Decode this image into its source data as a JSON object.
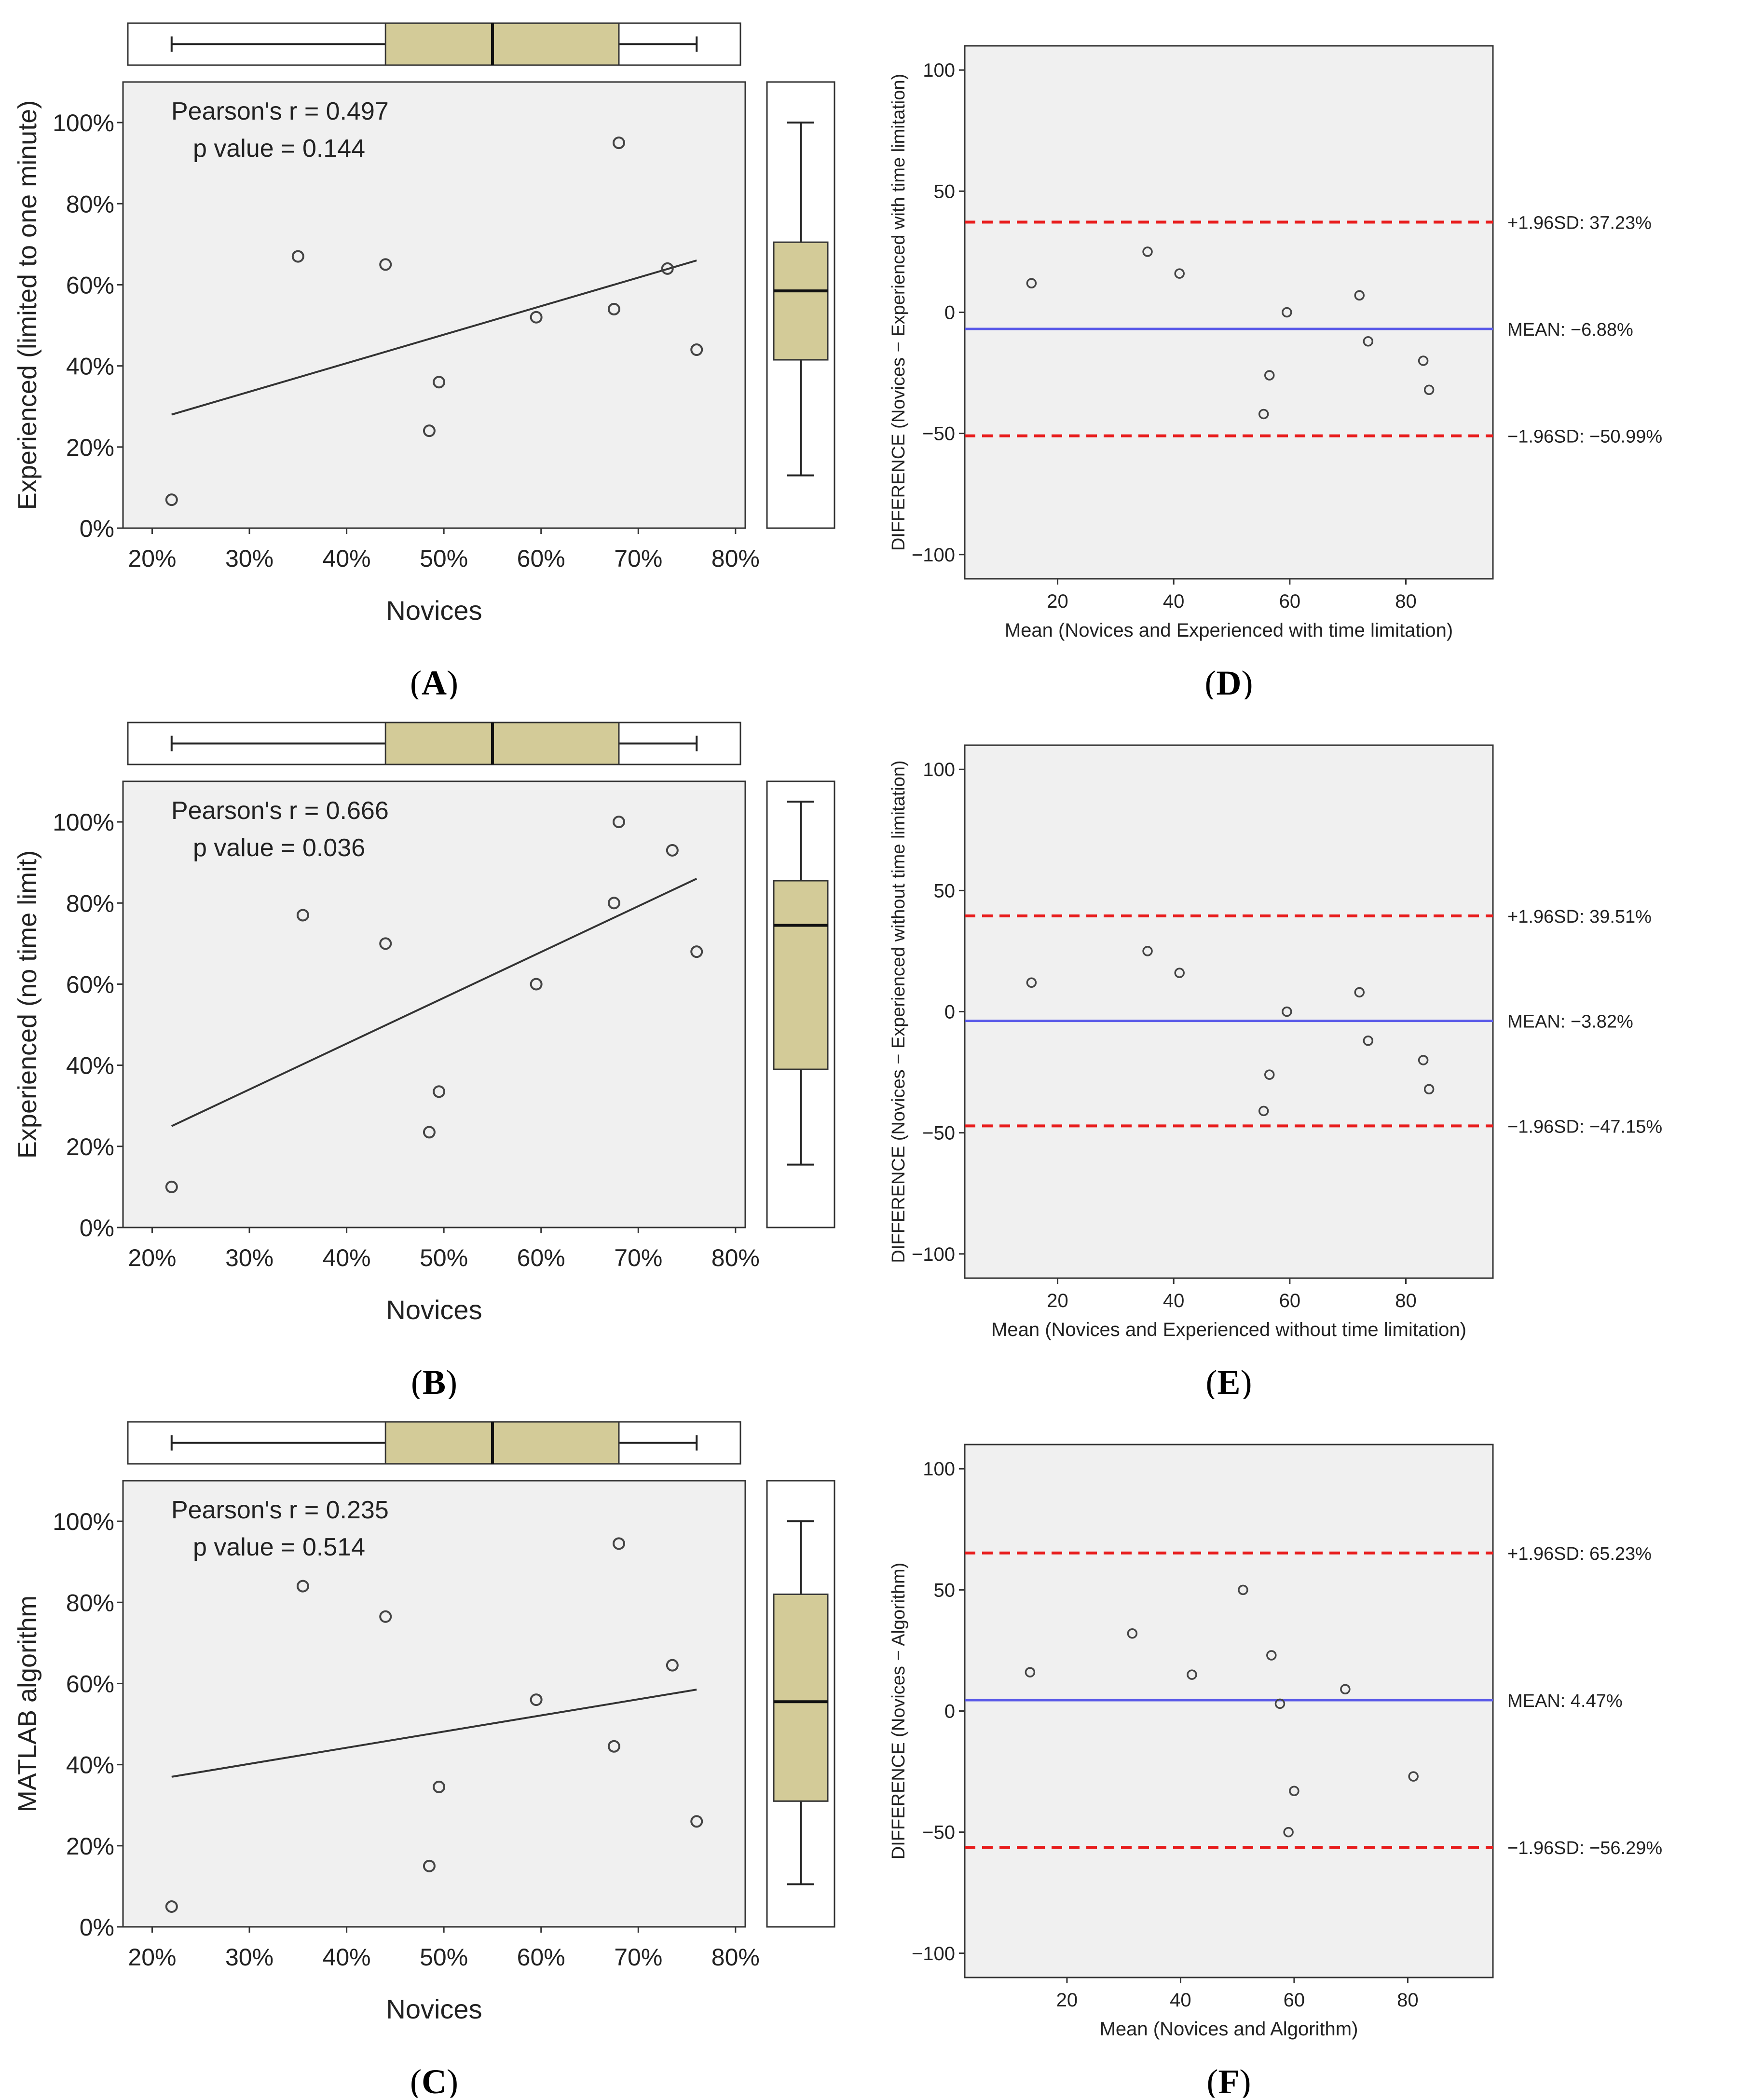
{
  "panels": [
    {
      "id": "A",
      "label": "A",
      "kind": "scatter",
      "xlabel": "Novices",
      "ylabel": "Experienced (limited to one minute)",
      "annotation_lines": [
        "Pearson's r = 0.497",
        "p value = 0.144"
      ],
      "xticks": [
        "20%",
        "30%",
        "40%",
        "50%",
        "60%",
        "70%",
        "80%"
      ],
      "yticks": [
        "0%",
        "20%",
        "40%",
        "60%",
        "80%",
        "100%"
      ]
    },
    {
      "id": "B",
      "label": "B",
      "kind": "scatter",
      "xlabel": "Novices",
      "ylabel": "Experienced (no time limit)",
      "annotation_lines": [
        "Pearson's r = 0.666",
        "p value = 0.036"
      ],
      "xticks": [
        "20%",
        "30%",
        "40%",
        "50%",
        "60%",
        "70%",
        "80%"
      ],
      "yticks": [
        "0%",
        "20%",
        "40%",
        "60%",
        "80%",
        "100%"
      ]
    },
    {
      "id": "C",
      "label": "C",
      "kind": "scatter",
      "xlabel": "Novices",
      "ylabel": "MATLAB algorithm",
      "annotation_lines": [
        "Pearson's r = 0.235",
        "p value = 0.514"
      ],
      "xticks": [
        "20%",
        "30%",
        "40%",
        "50%",
        "60%",
        "70%",
        "80%"
      ],
      "yticks": [
        "0%",
        "20%",
        "40%",
        "60%",
        "80%",
        "100%"
      ]
    },
    {
      "id": "D",
      "label": "D",
      "kind": "bland-altman",
      "xlabel": "Mean (Novices and Experienced with time limitation)",
      "ylabel": "DIFFERENCE (Novices − Experienced with time limitation)",
      "upper_label": "+1.96SD: 37.23%",
      "mean_label": "MEAN: −6.88%",
      "lower_label": "−1.96SD: −50.99%",
      "xticks": [
        "20",
        "40",
        "60",
        "80"
      ],
      "yticks": [
        "−100",
        "−50",
        "0",
        "50",
        "100"
      ]
    },
    {
      "id": "E",
      "label": "E",
      "kind": "bland-altman",
      "xlabel": "Mean (Novices and Experienced without time limitation)",
      "ylabel": "DIFFERENCE (Novices − Experienced without time limitation)",
      "upper_label": "+1.96SD: 39.51%",
      "mean_label": "MEAN: −3.82%",
      "lower_label": "−1.96SD: −47.15%",
      "xticks": [
        "20",
        "40",
        "60",
        "80"
      ],
      "yticks": [
        "−100",
        "−50",
        "0",
        "50",
        "100"
      ]
    },
    {
      "id": "F",
      "label": "F",
      "kind": "bland-altman",
      "xlabel": "Mean (Novices and Algorithm)",
      "ylabel": "DIFFERENCE (Novices − Algorithm)",
      "upper_label": "+1.96SD: 65.23%",
      "mean_label": "MEAN: 4.47%",
      "lower_label": "−1.96SD: −56.29%",
      "xticks": [
        "20",
        "40",
        "60",
        "80"
      ],
      "yticks": [
        "−100",
        "−50",
        "0",
        "50",
        "100"
      ]
    }
  ],
  "colors": {
    "plot_bg": "#f0f0f0",
    "box_fill": "#d3cb98",
    "sd_line": "#e81c1c",
    "mean_line": "#5a5ae8",
    "marker": "#444444",
    "fit_line": "#333333"
  },
  "chart_data": [
    {
      "type": "scatter",
      "panel": "A",
      "xlabel": "Novices",
      "ylabel": "Experienced (limited to one minute)",
      "xlim": [
        0.17,
        0.81
      ],
      "ylim": [
        0,
        1.1
      ],
      "points": [
        [
          0.22,
          0.07
        ],
        [
          0.35,
          0.67
        ],
        [
          0.44,
          0.65
        ],
        [
          0.485,
          0.24
        ],
        [
          0.495,
          0.36
        ],
        [
          0.595,
          0.52
        ],
        [
          0.675,
          0.54
        ],
        [
          0.68,
          0.95
        ],
        [
          0.73,
          0.64
        ],
        [
          0.76,
          0.44
        ]
      ],
      "fit_line": [
        [
          0.22,
          0.28
        ],
        [
          0.76,
          0.66
        ]
      ],
      "pearson_r": 0.497,
      "p_value": 0.144,
      "x_box": {
        "min": 0.22,
        "q1": 0.44,
        "median": 0.55,
        "q3": 0.68,
        "max": 0.76
      },
      "y_box": {
        "min": 0.13,
        "q1": 0.415,
        "median": 0.585,
        "q3": 0.705,
        "max": 1.0
      }
    },
    {
      "type": "scatter",
      "panel": "B",
      "xlabel": "Novices",
      "ylabel": "Experienced (no time limit)",
      "xlim": [
        0.17,
        0.81
      ],
      "ylim": [
        0,
        1.1
      ],
      "points": [
        [
          0.22,
          0.1
        ],
        [
          0.355,
          0.77
        ],
        [
          0.44,
          0.7
        ],
        [
          0.485,
          0.235
        ],
        [
          0.495,
          0.335
        ],
        [
          0.595,
          0.6
        ],
        [
          0.675,
          0.8
        ],
        [
          0.68,
          1.0
        ],
        [
          0.735,
          0.93
        ],
        [
          0.76,
          0.68
        ]
      ],
      "fit_line": [
        [
          0.22,
          0.25
        ],
        [
          0.76,
          0.86
        ]
      ],
      "pearson_r": 0.666,
      "p_value": 0.036,
      "x_box": {
        "min": 0.22,
        "q1": 0.44,
        "median": 0.55,
        "q3": 0.68,
        "max": 0.76
      },
      "y_box": {
        "min": 0.155,
        "q1": 0.39,
        "median": 0.745,
        "q3": 0.855,
        "max": 1.05
      }
    },
    {
      "type": "scatter",
      "panel": "C",
      "xlabel": "Novices",
      "ylabel": "MATLAB algorithm",
      "xlim": [
        0.17,
        0.81
      ],
      "ylim": [
        0,
        1.1
      ],
      "points": [
        [
          0.22,
          0.05
        ],
        [
          0.355,
          0.84
        ],
        [
          0.44,
          0.765
        ],
        [
          0.485,
          0.15
        ],
        [
          0.495,
          0.345
        ],
        [
          0.595,
          0.56
        ],
        [
          0.675,
          0.445
        ],
        [
          0.68,
          0.945
        ],
        [
          0.735,
          0.645
        ],
        [
          0.76,
          0.26
        ]
      ],
      "fit_line": [
        [
          0.22,
          0.37
        ],
        [
          0.76,
          0.585
        ]
      ],
      "pearson_r": 0.235,
      "p_value": 0.514,
      "x_box": {
        "min": 0.22,
        "q1": 0.44,
        "median": 0.55,
        "q3": 0.68,
        "max": 0.76
      },
      "y_box": {
        "min": 0.105,
        "q1": 0.31,
        "median": 0.555,
        "q3": 0.82,
        "max": 1.0
      }
    },
    {
      "type": "scatter",
      "panel": "D",
      "xlabel": "Mean (Novices and Experienced with time limitation)",
      "ylabel": "DIFFERENCE (Novices − Experienced with time limitation)",
      "xlim": [
        4,
        95
      ],
      "ylim": [
        -110,
        110
      ],
      "points": [
        [
          15.5,
          12
        ],
        [
          35.5,
          25
        ],
        [
          41,
          16
        ],
        [
          55.5,
          -42
        ],
        [
          56.5,
          -26
        ],
        [
          59.5,
          0
        ],
        [
          72,
          7
        ],
        [
          73.5,
          -12
        ],
        [
          83,
          -20
        ],
        [
          84,
          -32
        ]
      ],
      "mean": -6.88,
      "upper_sd": 37.23,
      "lower_sd": -50.99
    },
    {
      "type": "scatter",
      "panel": "E",
      "xlabel": "Mean (Novices and Experienced without time limitation)",
      "ylabel": "DIFFERENCE (Novices − Experienced without time limitation)",
      "xlim": [
        4,
        95
      ],
      "ylim": [
        -110,
        110
      ],
      "points": [
        [
          15.5,
          12
        ],
        [
          35.5,
          25
        ],
        [
          41,
          16
        ],
        [
          55.5,
          -41
        ],
        [
          56.5,
          -26
        ],
        [
          59.5,
          0
        ],
        [
          72,
          8
        ],
        [
          73.5,
          -12
        ],
        [
          83,
          -20
        ],
        [
          84,
          -32
        ]
      ],
      "mean": -3.82,
      "upper_sd": 39.51,
      "lower_sd": -47.15
    },
    {
      "type": "scatter",
      "panel": "F",
      "xlabel": "Mean (Novices and Algorithm)",
      "ylabel": "DIFFERENCE (Novices − Algorithm)",
      "xlim": [
        2,
        95
      ],
      "ylim": [
        -110,
        110
      ],
      "points": [
        [
          13.5,
          16
        ],
        [
          31.5,
          32
        ],
        [
          42,
          15
        ],
        [
          51,
          50
        ],
        [
          56,
          23
        ],
        [
          57.5,
          3
        ],
        [
          59,
          -50
        ],
        [
          60,
          -33
        ],
        [
          69,
          9
        ],
        [
          81,
          -27
        ]
      ],
      "mean": 4.47,
      "upper_sd": 65.23,
      "lower_sd": -56.29
    }
  ]
}
